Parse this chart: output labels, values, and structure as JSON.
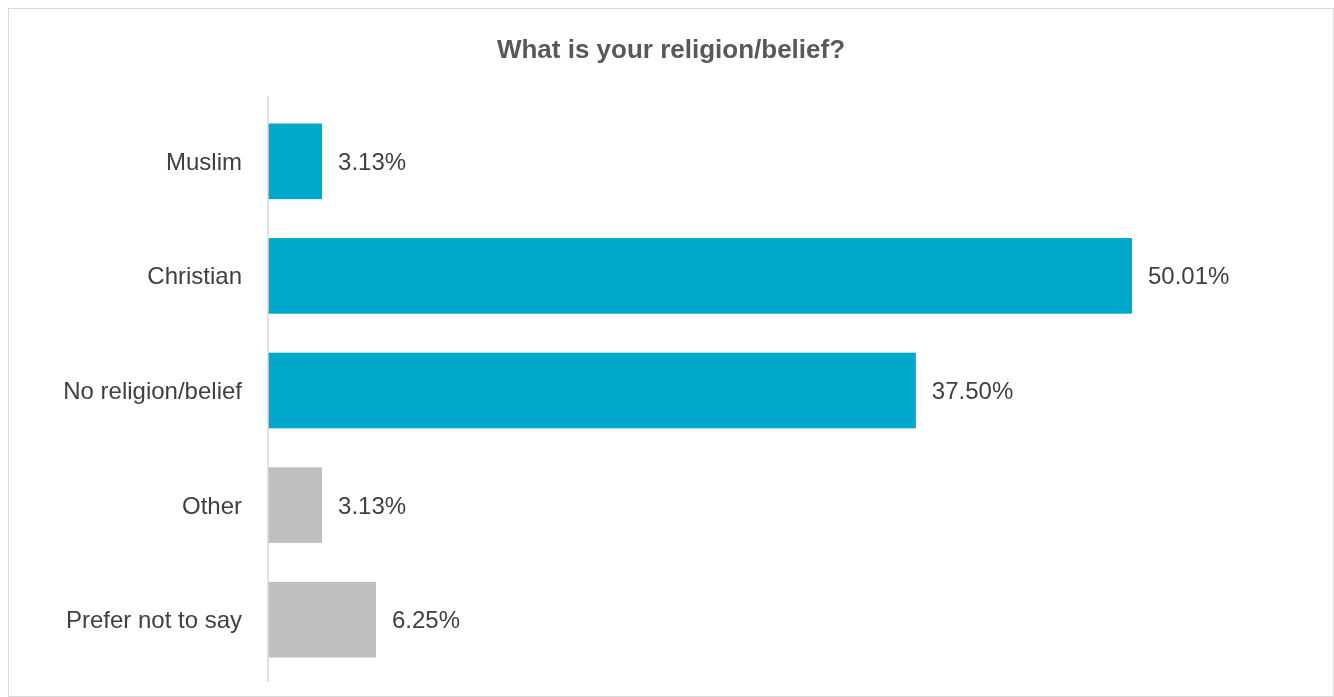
{
  "chart_data": {
    "type": "bar",
    "orientation": "horizontal",
    "title": "What is your religion/belief?",
    "categories": [
      "Muslim",
      "Christian",
      "No religion/belief",
      "Other",
      "Prefer not to say"
    ],
    "values": [
      3.13,
      50.01,
      37.5,
      3.13,
      6.25
    ],
    "colors": [
      "#00a8cc",
      "#00a8cc",
      "#00a8cc",
      "#bfbfbf",
      "#bfbfbf"
    ],
    "value_labels": [
      "3.13%",
      "50.01%",
      "37.50%",
      "3.13%",
      "6.25%"
    ]
  }
}
